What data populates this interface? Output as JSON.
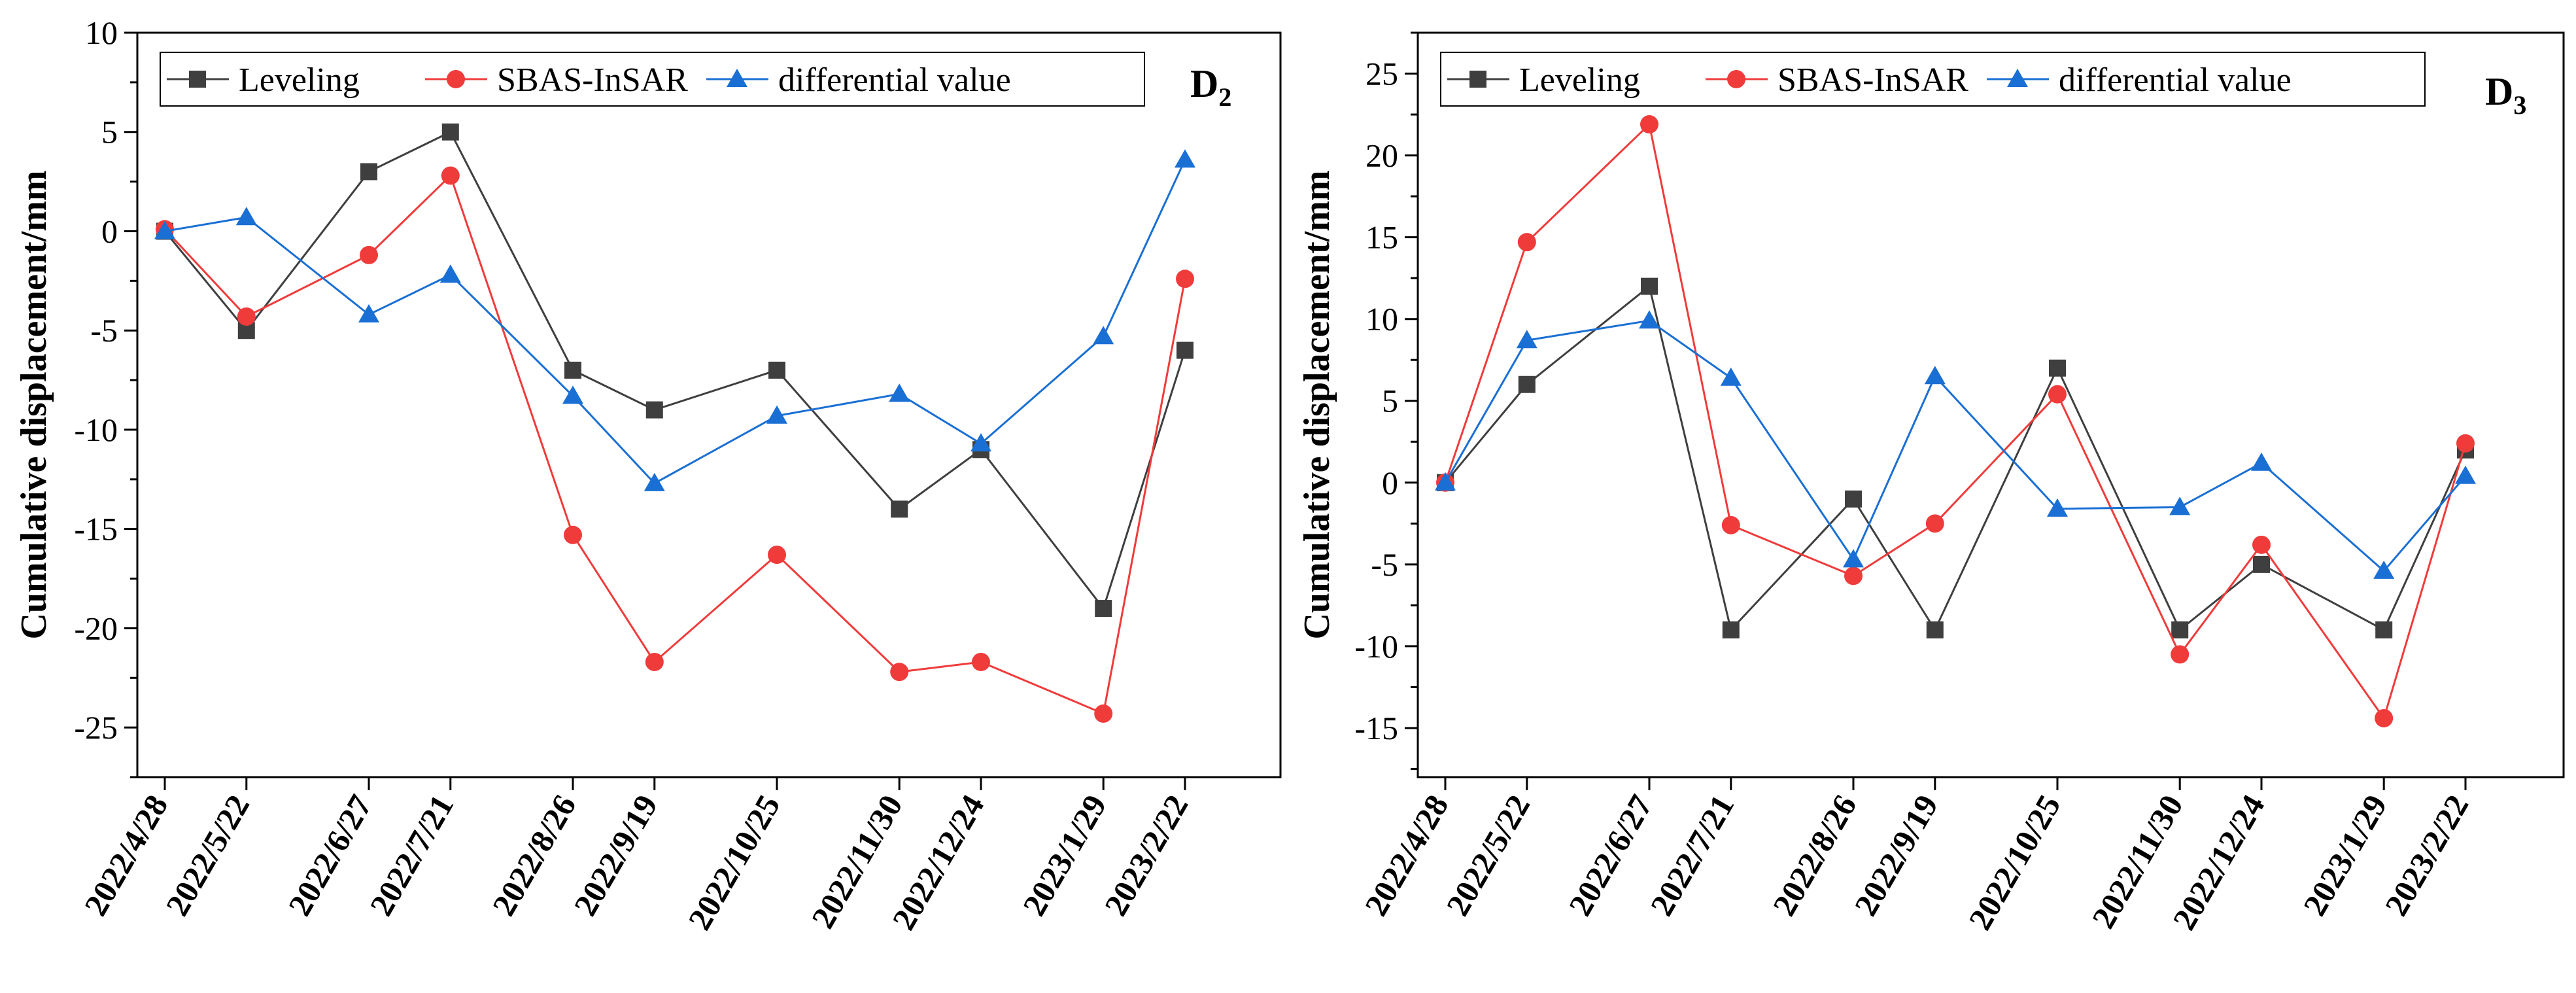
{
  "chart_data": [
    {
      "type": "line",
      "panel_label": "D",
      "panel_subscript": "2",
      "ylabel": "Cumulative displacement/mm",
      "xlabel": "",
      "ylim": [
        -27.5,
        10
      ],
      "yticks": [
        10,
        5,
        0,
        -5,
        -10,
        -15,
        -20,
        -25
      ],
      "x_day_offsets": [
        0,
        24,
        60,
        84,
        120,
        144,
        180,
        216,
        240,
        276,
        300
      ],
      "categories": [
        "2022/4/28",
        "2022/5/22",
        "2022/6/27",
        "2022/7/21",
        "2022/8/26",
        "2022/9/19",
        "2022/10/25",
        "2022/11/30",
        "2022/12/24",
        "2023/1/29",
        "2023/2/22"
      ],
      "legend_position": "top",
      "series": [
        {
          "name": "Leveling",
          "color": "#3f3f3f",
          "marker": "square",
          "values": [
            0,
            -5,
            3,
            5,
            -7,
            -9,
            -7,
            -14,
            -11,
            -19,
            -6
          ]
        },
        {
          "name": "SBAS-InSAR",
          "color": "#f03b3b",
          "marker": "circle",
          "values": [
            0.1,
            -4.3,
            -1.2,
            2.8,
            -15.3,
            -21.7,
            -16.3,
            -22.2,
            -21.7,
            -24.3,
            -2.4
          ]
        },
        {
          "name": "differential value",
          "color": "#1a6fd4",
          "marker": "triangle",
          "values": [
            0,
            0.7,
            -4.2,
            -2.2,
            -8.3,
            -12.7,
            -9.3,
            -8.2,
            -10.7,
            -5.3,
            3.6
          ]
        }
      ]
    },
    {
      "type": "line",
      "panel_label": "D",
      "panel_subscript": "3",
      "ylabel": "Cumulative displacement/mm",
      "xlabel": "",
      "ylim": [
        -18,
        27.5
      ],
      "yticks": [
        25,
        20,
        15,
        10,
        5,
        0,
        -5,
        -10,
        -15
      ],
      "x_day_offsets": [
        0,
        24,
        60,
        84,
        120,
        144,
        180,
        216,
        240,
        276,
        300
      ],
      "categories": [
        "2022/4/28",
        "2022/5/22",
        "2022/6/27",
        "2022/7/21",
        "2022/8/26",
        "2022/9/19",
        "2022/10/25",
        "2022/11/30",
        "2022/12/24",
        "2023/1/29",
        "2023/2/22"
      ],
      "legend_position": "top",
      "series": [
        {
          "name": "Leveling",
          "color": "#3f3f3f",
          "marker": "square",
          "values": [
            0,
            6,
            12,
            -9,
            -1,
            -9,
            7,
            -9,
            -5,
            -9,
            2
          ]
        },
        {
          "name": "SBAS-InSAR",
          "color": "#f03b3b",
          "marker": "circle",
          "values": [
            0,
            14.7,
            21.9,
            -2.6,
            -5.7,
            -2.5,
            5.4,
            -10.5,
            -3.8,
            -14.4,
            2.4
          ]
        },
        {
          "name": "differential value",
          "color": "#1a6fd4",
          "marker": "triangle",
          "values": [
            0,
            8.7,
            9.9,
            6.4,
            -4.7,
            6.5,
            -1.6,
            -1.5,
            1.2,
            -5.4,
            0.4
          ]
        }
      ]
    }
  ]
}
